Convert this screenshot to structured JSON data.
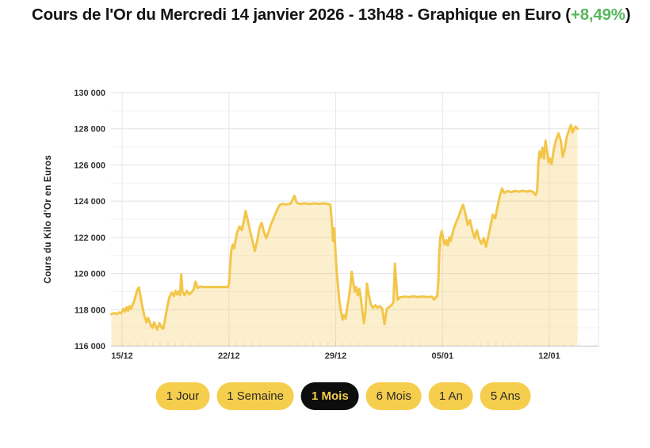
{
  "colors": {
    "accent-yellow": "#f6ce4d",
    "active-bg": "#0d0d0d",
    "pill-text": "#2a2a2a",
    "green": "#57b75c",
    "title-color": "#141414"
  },
  "title": {
    "main": "Cours de l'Or du Mercredi 14 janvier 2026 - 13h48 - Graphique en Euro ",
    "change_prefix": "(",
    "change": "+8,49%",
    "change_suffix": ")"
  },
  "buttons": {
    "active": "1 Mois",
    "items": [
      {
        "label": "1 Jour"
      },
      {
        "label": "1 Semaine"
      },
      {
        "label": "1 Mois"
      },
      {
        "label": "6 Mois"
      },
      {
        "label": "1 An"
      },
      {
        "label": "5 Ans"
      }
    ]
  },
  "chart_data": {
    "type": "area",
    "y_title": "Cours du Kilo d'Or en Euros",
    "ylim": [
      116000,
      130000
    ],
    "grid": true,
    "line_color": "#f3c64a",
    "fill_color": "rgba(243,198,74,0.28)",
    "y_ticks": [
      {
        "value": 130000,
        "label": "130 000"
      },
      {
        "value": 128000,
        "label": "128 000"
      },
      {
        "value": 126000,
        "label": "126 000"
      },
      {
        "value": 124000,
        "label": "124 000"
      },
      {
        "value": 122000,
        "label": "122 000"
      },
      {
        "value": 120000,
        "label": "120 000"
      },
      {
        "value": 118000,
        "label": "118 000"
      },
      {
        "value": 116000,
        "label": "116 000"
      }
    ],
    "y_minor": [
      117000,
      119000,
      121000,
      123000,
      125000,
      127000,
      129000
    ],
    "x_ticks": [
      {
        "day": 0,
        "label": "15/12"
      },
      {
        "day": 7,
        "label": "22/12"
      },
      {
        "day": 14,
        "label": "29/12"
      },
      {
        "day": 21,
        "label": "05/01"
      },
      {
        "day": 28,
        "label": "12/01"
      }
    ],
    "points": [
      [
        -0.7,
        117750
      ],
      [
        -0.5,
        117820
      ],
      [
        -0.35,
        117760
      ],
      [
        -0.2,
        117850
      ],
      [
        -0.05,
        117800
      ],
      [
        0.1,
        118050
      ],
      [
        0.2,
        117900
      ],
      [
        0.3,
        118150
      ],
      [
        0.4,
        117950
      ],
      [
        0.5,
        118200
      ],
      [
        0.6,
        118050
      ],
      [
        0.7,
        118300
      ],
      [
        0.8,
        118500
      ],
      [
        0.9,
        118800
      ],
      [
        1.0,
        119100
      ],
      [
        1.1,
        119230
      ],
      [
        1.2,
        118800
      ],
      [
        1.3,
        118300
      ],
      [
        1.45,
        117700
      ],
      [
        1.6,
        117300
      ],
      [
        1.7,
        117550
      ],
      [
        1.8,
        117350
      ],
      [
        1.9,
        117100
      ],
      [
        2.0,
        117000
      ],
      [
        2.1,
        117300
      ],
      [
        2.2,
        117100
      ],
      [
        2.3,
        116900
      ],
      [
        2.45,
        117250
      ],
      [
        2.6,
        117000
      ],
      [
        2.7,
        116950
      ],
      [
        2.8,
        117400
      ],
      [
        2.95,
        118100
      ],
      [
        3.1,
        118700
      ],
      [
        3.25,
        118950
      ],
      [
        3.4,
        118750
      ],
      [
        3.5,
        119050
      ],
      [
        3.6,
        118850
      ],
      [
        3.7,
        119000
      ],
      [
        3.8,
        118800
      ],
      [
        3.88,
        119950
      ],
      [
        3.96,
        119000
      ],
      [
        4.1,
        118800
      ],
      [
        4.25,
        119050
      ],
      [
        4.4,
        118850
      ],
      [
        4.55,
        118950
      ],
      [
        4.7,
        119150
      ],
      [
        4.82,
        119550
      ],
      [
        4.95,
        119200
      ],
      [
        5.1,
        119280
      ],
      [
        5.4,
        119250
      ],
      [
        5.8,
        119260
      ],
      [
        6.2,
        119250
      ],
      [
        6.6,
        119260
      ],
      [
        6.95,
        119250
      ],
      [
        7.02,
        119500
      ],
      [
        7.08,
        120400
      ],
      [
        7.15,
        121200
      ],
      [
        7.25,
        121600
      ],
      [
        7.35,
        121400
      ],
      [
        7.45,
        121900
      ],
      [
        7.55,
        122300
      ],
      [
        7.7,
        122600
      ],
      [
        7.85,
        122400
      ],
      [
        8.0,
        123000
      ],
      [
        8.1,
        123450
      ],
      [
        8.25,
        122900
      ],
      [
        8.4,
        122300
      ],
      [
        8.55,
        121800
      ],
      [
        8.7,
        121250
      ],
      [
        8.85,
        121800
      ],
      [
        9.0,
        122500
      ],
      [
        9.15,
        122800
      ],
      [
        9.3,
        122300
      ],
      [
        9.45,
        121950
      ],
      [
        9.6,
        122300
      ],
      [
        9.75,
        122700
      ],
      [
        9.9,
        123000
      ],
      [
        10.05,
        123300
      ],
      [
        10.2,
        123600
      ],
      [
        10.35,
        123800
      ],
      [
        10.55,
        123850
      ],
      [
        10.8,
        123820
      ],
      [
        11.05,
        123860
      ],
      [
        11.3,
        124300
      ],
      [
        11.45,
        123900
      ],
      [
        11.7,
        123850
      ],
      [
        12.0,
        123880
      ],
      [
        12.3,
        123840
      ],
      [
        12.6,
        123880
      ],
      [
        12.9,
        123850
      ],
      [
        13.2,
        123880
      ],
      [
        13.5,
        123850
      ],
      [
        13.65,
        123800
      ],
      [
        13.75,
        122800
      ],
      [
        13.82,
        121800
      ],
      [
        13.9,
        122500
      ],
      [
        13.98,
        121300
      ],
      [
        14.05,
        120300
      ],
      [
        14.15,
        119300
      ],
      [
        14.25,
        118400
      ],
      [
        14.35,
        117900
      ],
      [
        14.45,
        117450
      ],
      [
        14.55,
        117700
      ],
      [
        14.65,
        117500
      ],
      [
        14.75,
        118100
      ],
      [
        14.85,
        118600
      ],
      [
        14.95,
        119200
      ],
      [
        15.05,
        120100
      ],
      [
        15.15,
        119500
      ],
      [
        15.25,
        119000
      ],
      [
        15.35,
        119250
      ],
      [
        15.45,
        118800
      ],
      [
        15.55,
        119150
      ],
      [
        15.65,
        118600
      ],
      [
        15.75,
        117900
      ],
      [
        15.85,
        117250
      ],
      [
        15.95,
        117900
      ],
      [
        16.05,
        119450
      ],
      [
        16.15,
        118900
      ],
      [
        16.3,
        118300
      ],
      [
        16.45,
        118100
      ],
      [
        16.6,
        118250
      ],
      [
        16.75,
        118100
      ],
      [
        16.9,
        118200
      ],
      [
        17.05,
        118050
      ],
      [
        17.2,
        117200
      ],
      [
        17.35,
        118050
      ],
      [
        17.5,
        118150
      ],
      [
        17.65,
        118250
      ],
      [
        17.78,
        118400
      ],
      [
        17.88,
        120550
      ],
      [
        17.96,
        119600
      ],
      [
        18.05,
        118550
      ],
      [
        18.2,
        118680
      ],
      [
        18.5,
        118720
      ],
      [
        18.8,
        118700
      ],
      [
        19.1,
        118740
      ],
      [
        19.4,
        118700
      ],
      [
        19.7,
        118730
      ],
      [
        20.0,
        118700
      ],
      [
        20.3,
        118720
      ],
      [
        20.45,
        118550
      ],
      [
        20.55,
        118700
      ],
      [
        20.65,
        118720
      ],
      [
        20.72,
        119500
      ],
      [
        20.78,
        121000
      ],
      [
        20.85,
        122000
      ],
      [
        20.95,
        122350
      ],
      [
        21.05,
        121900
      ],
      [
        21.15,
        121600
      ],
      [
        21.25,
        121850
      ],
      [
        21.35,
        121550
      ],
      [
        21.45,
        122000
      ],
      [
        21.55,
        121800
      ],
      [
        21.65,
        122200
      ],
      [
        21.75,
        122500
      ],
      [
        21.9,
        122850
      ],
      [
        22.05,
        123150
      ],
      [
        22.2,
        123500
      ],
      [
        22.35,
        123800
      ],
      [
        22.5,
        123300
      ],
      [
        22.65,
        122700
      ],
      [
        22.8,
        122950
      ],
      [
        22.95,
        122400
      ],
      [
        23.1,
        121950
      ],
      [
        23.25,
        122400
      ],
      [
        23.4,
        121900
      ],
      [
        23.55,
        121650
      ],
      [
        23.7,
        121950
      ],
      [
        23.85,
        121480
      ],
      [
        24.0,
        122050
      ],
      [
        24.15,
        122650
      ],
      [
        24.3,
        123250
      ],
      [
        24.45,
        123050
      ],
      [
        24.6,
        123650
      ],
      [
        24.75,
        124250
      ],
      [
        24.9,
        124700
      ],
      [
        25.05,
        124450
      ],
      [
        25.25,
        124560
      ],
      [
        25.5,
        124500
      ],
      [
        25.75,
        124570
      ],
      [
        26.0,
        124520
      ],
      [
        26.25,
        124580
      ],
      [
        26.5,
        124530
      ],
      [
        26.75,
        124570
      ],
      [
        26.95,
        124500
      ],
      [
        27.1,
        124330
      ],
      [
        27.2,
        124550
      ],
      [
        27.28,
        126000
      ],
      [
        27.35,
        126740
      ],
      [
        27.45,
        126400
      ],
      [
        27.55,
        126950
      ],
      [
        27.65,
        126350
      ],
      [
        27.75,
        127350
      ],
      [
        27.85,
        126750
      ],
      [
        27.95,
        126150
      ],
      [
        28.05,
        126350
      ],
      [
        28.15,
        126050
      ],
      [
        28.3,
        126900
      ],
      [
        28.45,
        127400
      ],
      [
        28.6,
        127750
      ],
      [
        28.75,
        127350
      ],
      [
        28.88,
        126450
      ],
      [
        29.0,
        126850
      ],
      [
        29.15,
        127550
      ],
      [
        29.3,
        127950
      ],
      [
        29.42,
        128200
      ],
      [
        29.52,
        127800
      ],
      [
        29.62,
        128000
      ],
      [
        29.72,
        128120
      ],
      [
        29.85,
        128000
      ]
    ]
  }
}
